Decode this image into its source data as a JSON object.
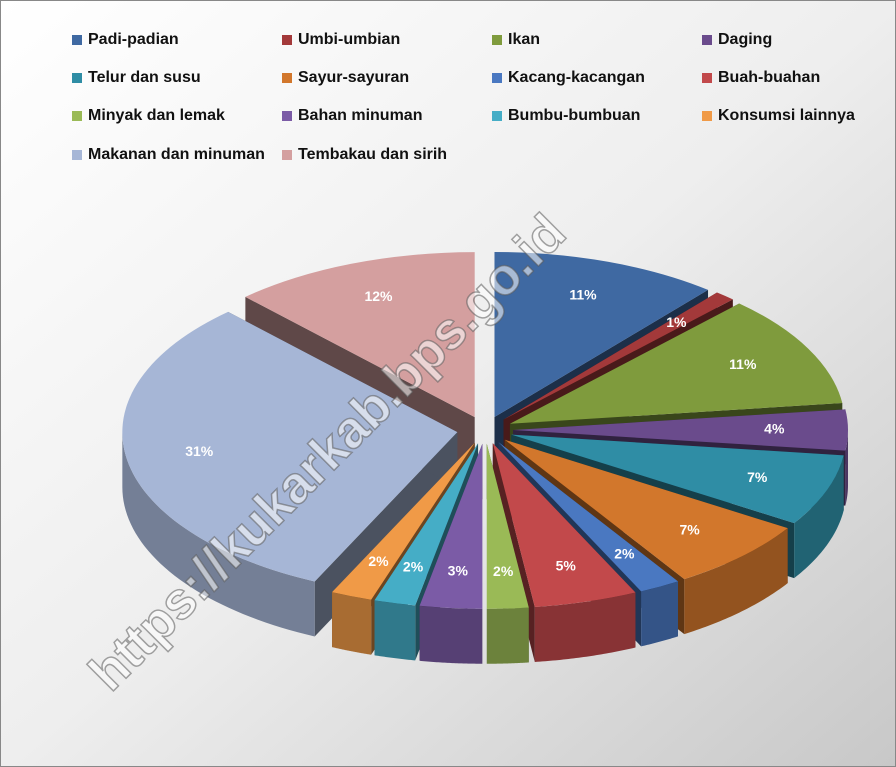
{
  "chart_data": {
    "type": "pie",
    "categories": [
      "Padi-padian",
      "Umbi-umbian",
      "Ikan",
      "Daging",
      "Telur dan susu",
      "Sayur-sayuran",
      "Kacang-kacangan",
      "Buah-buahan",
      "Minyak dan lemak",
      "Bahan minuman",
      "Bumbu-bumbuan",
      "Konsumsi lainnya",
      "Makanan dan minuman",
      "Tembakau dan sirih"
    ],
    "values": [
      11,
      1,
      11,
      4,
      7,
      7,
      2,
      5,
      2,
      3,
      2,
      2,
      31,
      12
    ],
    "value_labels": [
      "11%",
      "1%",
      "11%",
      "4%",
      "7%",
      "7%",
      "2%",
      "5%",
      "2%",
      "3%",
      "2%",
      "2%",
      "31%",
      "12%"
    ],
    "colors": [
      "#3f69a2",
      "#a3393a",
      "#7f9b3d",
      "#6a4b8c",
      "#2f8da5",
      "#d2772c",
      "#4a78c1",
      "#c2494b",
      "#9aba56",
      "#7b5ba6",
      "#45adc6",
      "#f09a47",
      "#a6b6d6",
      "#d49f9f"
    ],
    "legend": "top",
    "watermark": "https://kukarkab.bps.go.id"
  }
}
